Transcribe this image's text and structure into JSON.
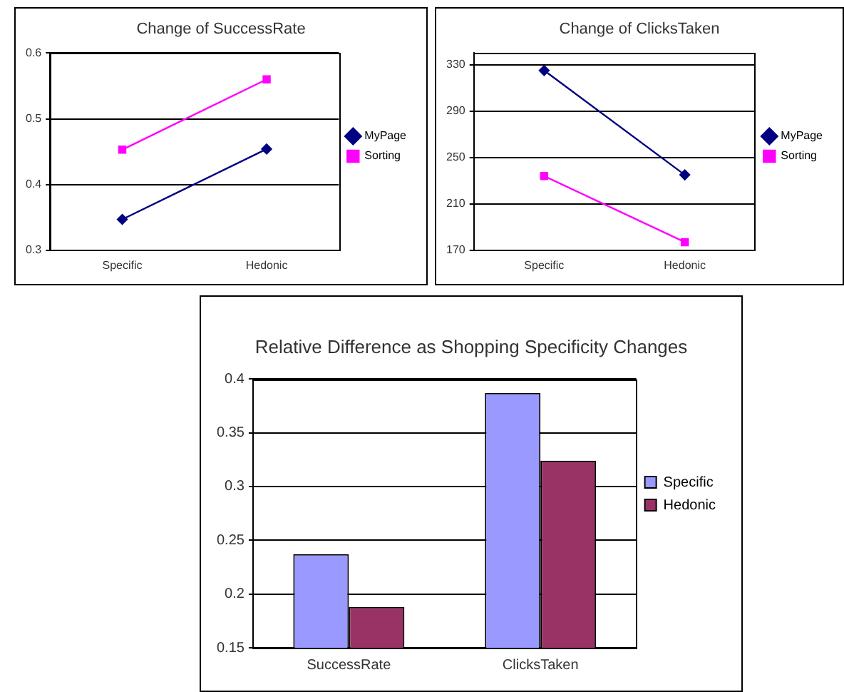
{
  "chart_data": [
    {
      "type": "line",
      "title": "Change of SuccessRate",
      "categories": [
        "Specific",
        "Hedonic"
      ],
      "series": [
        {
          "name": "MyPage",
          "color": "#000080",
          "values": [
            0.347,
            0.454
          ],
          "marker": "diamond"
        },
        {
          "name": "Sorting",
          "color": "#ff00ff",
          "values": [
            0.453,
            0.56
          ],
          "marker": "square"
        }
      ],
      "ylim": [
        0.3,
        0.6
      ],
      "yticks": [
        0.3,
        0.4,
        0.5,
        0.6
      ],
      "grid": "y",
      "legend": "right"
    },
    {
      "type": "line",
      "title": "Change of ClicksTaken",
      "categories": [
        "Specific",
        "Hedonic"
      ],
      "series": [
        {
          "name": "MyPage",
          "color": "#000080",
          "values": [
            325,
            235
          ],
          "marker": "diamond"
        },
        {
          "name": "Sorting",
          "color": "#ff00ff",
          "values": [
            234,
            177
          ],
          "marker": "square"
        }
      ],
      "ylim": [
        170,
        340
      ],
      "yticks": [
        170,
        210,
        250,
        290,
        330
      ],
      "grid": "y",
      "legend": "right"
    },
    {
      "type": "bar",
      "title": "Relative Difference as Shopping Specificity Changes",
      "categories": [
        "SuccessRate",
        "ClicksTaken"
      ],
      "series": [
        {
          "name": "Specific",
          "color": "#9999ff",
          "values": [
            0.237,
            0.387
          ]
        },
        {
          "name": "Hedonic",
          "color": "#993366",
          "values": [
            0.188,
            0.324
          ]
        }
      ],
      "ylim": [
        0.15,
        0.4
      ],
      "yticks": [
        0.15,
        0.2,
        0.25,
        0.3,
        0.35,
        0.4
      ],
      "grid": "y",
      "legend": "right"
    }
  ]
}
